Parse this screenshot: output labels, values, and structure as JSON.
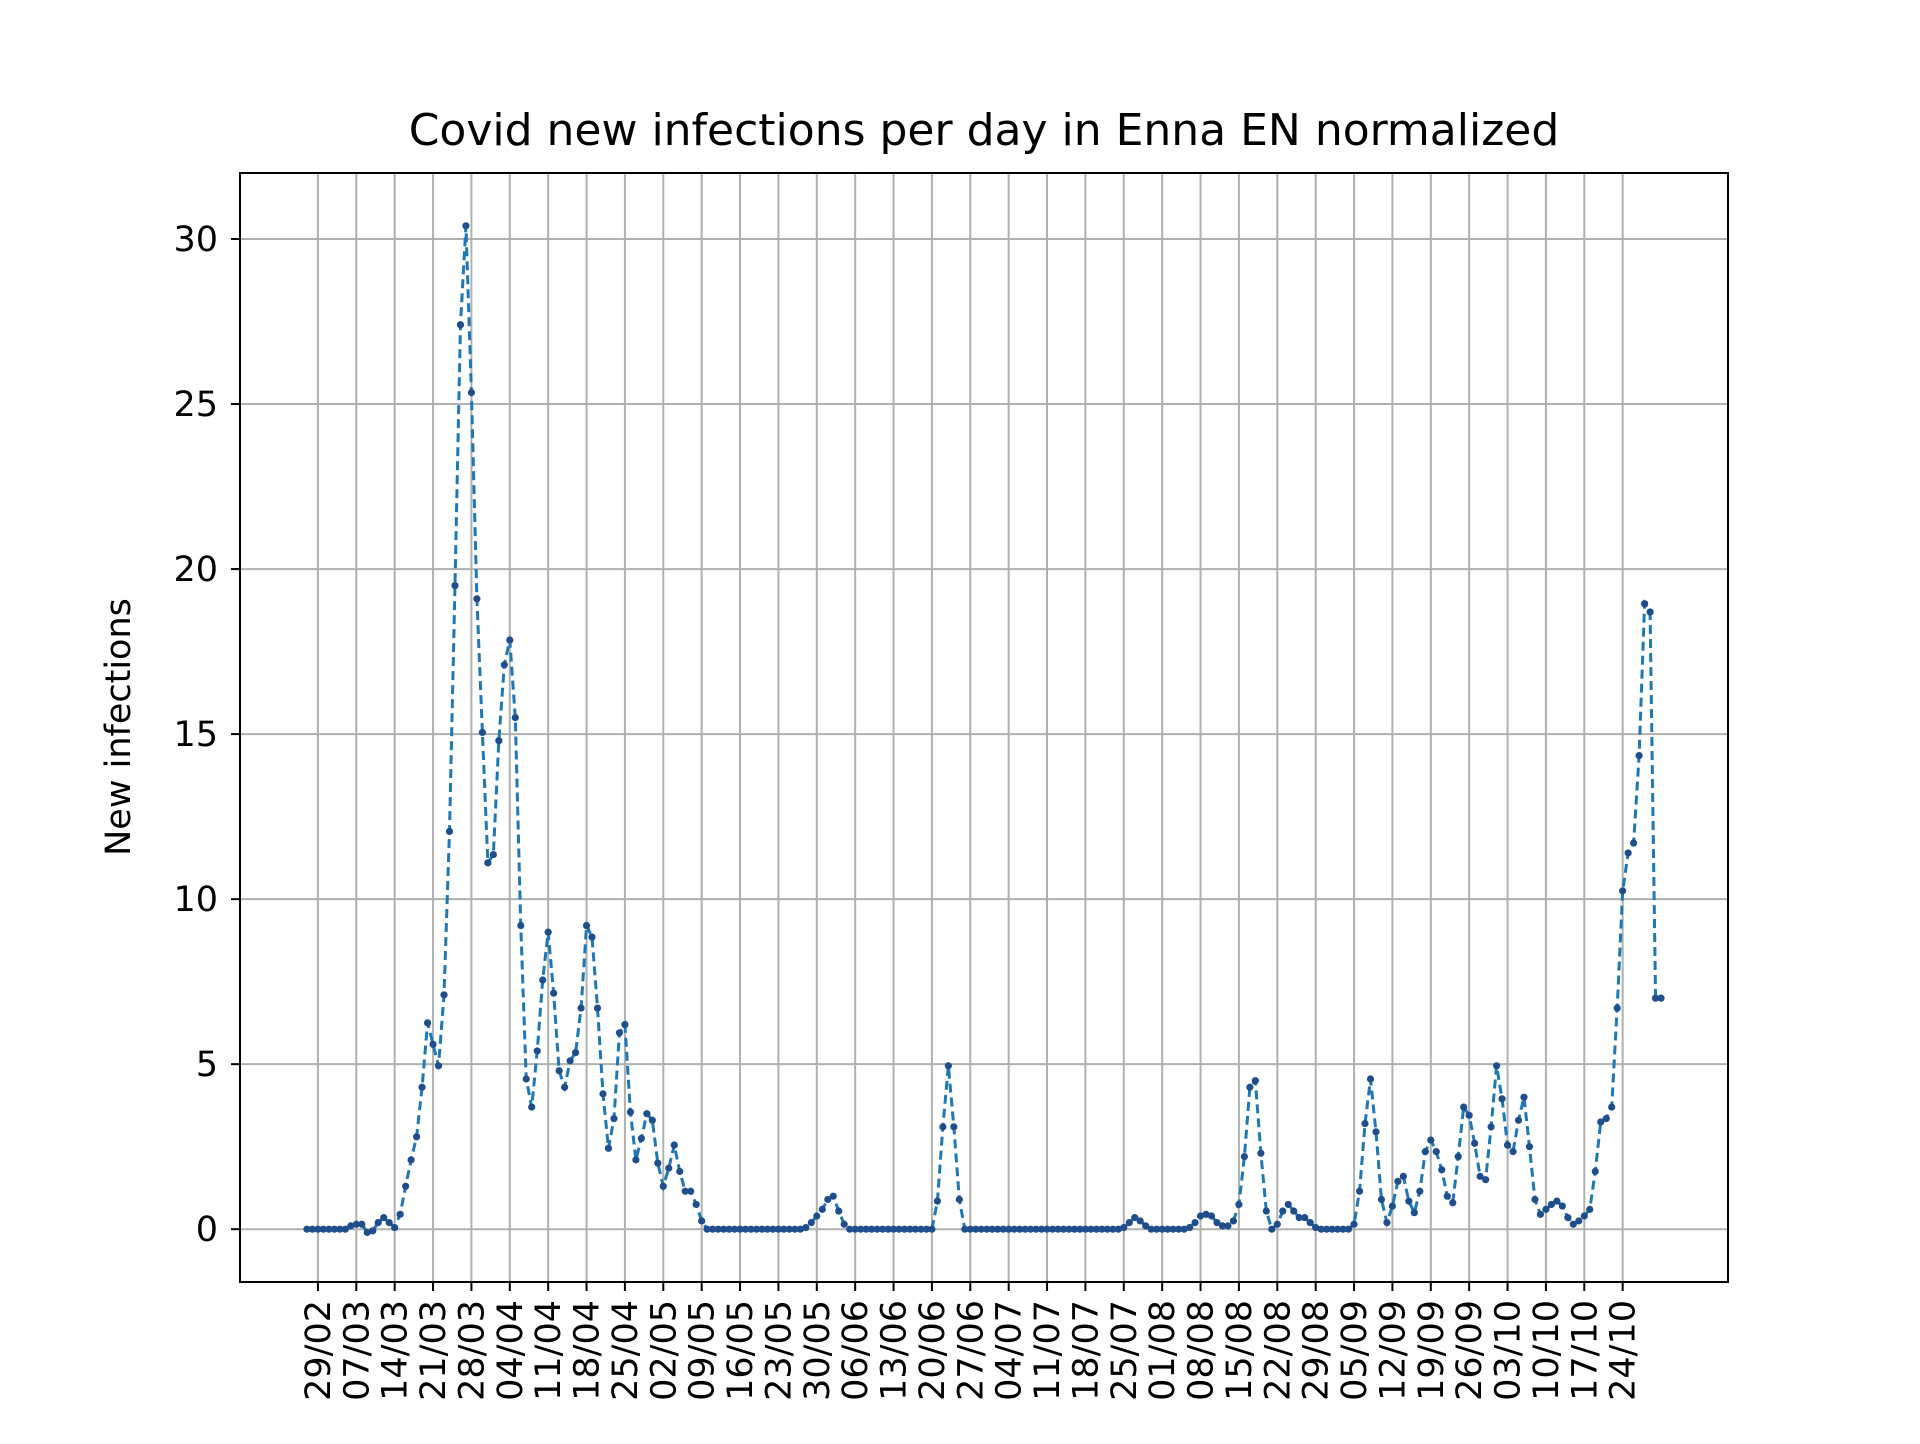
{
  "chart_data": {
    "type": "line",
    "title": "Covid new infections per day in Enna EN normalized",
    "xlabel": "",
    "ylabel": "New infections",
    "ylim": [
      -1.6,
      32
    ],
    "y_ticks": [
      0,
      5,
      10,
      15,
      20,
      25,
      30
    ],
    "x_tick_labels": [
      "29/02",
      "07/03",
      "14/03",
      "21/03",
      "28/03",
      "04/04",
      "11/04",
      "18/04",
      "25/04",
      "02/05",
      "09/05",
      "16/05",
      "23/05",
      "30/05",
      "06/06",
      "13/06",
      "20/06",
      "27/06",
      "04/07",
      "11/07",
      "18/07",
      "25/07",
      "01/08",
      "08/08",
      "15/08",
      "22/08",
      "29/08",
      "05/09",
      "12/09",
      "19/09",
      "26/09",
      "03/10",
      "10/10",
      "17/10",
      "24/10"
    ],
    "x_start": "27/02",
    "x_end": "25/10",
    "grid": true,
    "line_color": "#1f77b4",
    "marker_color": "#1f4e8c",
    "line_style": "dashed with dot markers",
    "series": [
      {
        "values": [
          0.0,
          0.0,
          0.0,
          0.0,
          0.0,
          0.0,
          0.0,
          0.0,
          0.1,
          0.15,
          0.15,
          -0.1,
          -0.05,
          0.2,
          0.35,
          0.2,
          0.05,
          0.45,
          1.3,
          2.1,
          2.8,
          4.3,
          6.25,
          5.6,
          4.95,
          7.1,
          12.05,
          19.5,
          27.4,
          30.4,
          25.35,
          19.1,
          15.05,
          11.1,
          11.35,
          14.8,
          17.1,
          17.85,
          15.5,
          9.2,
          4.55,
          3.7,
          5.4,
          7.55,
          9.0,
          7.15,
          4.8,
          4.3,
          5.1,
          5.35,
          6.7,
          9.2,
          8.85,
          6.7,
          4.1,
          2.45,
          3.35,
          5.95,
          6.2,
          3.55,
          2.1,
          2.75,
          3.5,
          3.3,
          2.0,
          1.3,
          1.85,
          2.55,
          1.75,
          1.15,
          1.15,
          0.75,
          0.25,
          0.0,
          0.0,
          0.0,
          0.0,
          0.0,
          0.0,
          0.0,
          0.0,
          0.0,
          0.0,
          0.0,
          0.0,
          0.0,
          0.0,
          0.0,
          0.0,
          0.0,
          0.0,
          0.05,
          0.2,
          0.4,
          0.6,
          0.9,
          1.0,
          0.55,
          0.15,
          0.0,
          0.0,
          0.0,
          0.0,
          0.0,
          0.0,
          0.0,
          0.0,
          0.0,
          0.0,
          0.0,
          0.0,
          0.0,
          0.0,
          0.0,
          0.0,
          0.85,
          3.1,
          4.95,
          3.1,
          0.9,
          0.0,
          0.0,
          0.0,
          0.0,
          0.0,
          0.0,
          0.0,
          0.0,
          0.0,
          0.0,
          0.0,
          0.0,
          0.0,
          0.0,
          0.0,
          0.0,
          0.0,
          0.0,
          0.0,
          0.0,
          0.0,
          0.0,
          0.0,
          0.0,
          0.0,
          0.0,
          0.0,
          0.0,
          0.0,
          0.05,
          0.2,
          0.35,
          0.25,
          0.1,
          0.0,
          0.0,
          0.0,
          0.0,
          0.0,
          0.0,
          0.0,
          0.05,
          0.2,
          0.4,
          0.45,
          0.4,
          0.2,
          0.1,
          0.1,
          0.25,
          0.75,
          2.2,
          4.3,
          4.5,
          2.3,
          0.55,
          0.0,
          0.15,
          0.55,
          0.75,
          0.55,
          0.35,
          0.35,
          0.2,
          0.05,
          0.0,
          0.0,
          0.0,
          0.0,
          0.0,
          0.0,
          0.15,
          1.15,
          3.2,
          4.55,
          2.95,
          0.9,
          0.2,
          0.7,
          1.45,
          1.6,
          0.85,
          0.5,
          1.15,
          2.35,
          2.7,
          2.35,
          1.8,
          1.0,
          0.8,
          2.2,
          3.7,
          3.45,
          2.6,
          1.6,
          1.5,
          3.1,
          4.95,
          3.95,
          2.55,
          2.35,
          3.3,
          4.0,
          2.5,
          0.9,
          0.45,
          0.6,
          0.75,
          0.85,
          0.7,
          0.35,
          0.15,
          0.25,
          0.4,
          0.6,
          1.75,
          3.25,
          3.35,
          3.7,
          6.7,
          10.25,
          11.4,
          11.7,
          14.35,
          18.95,
          18.7,
          7.0,
          7.0
        ]
      }
    ]
  }
}
